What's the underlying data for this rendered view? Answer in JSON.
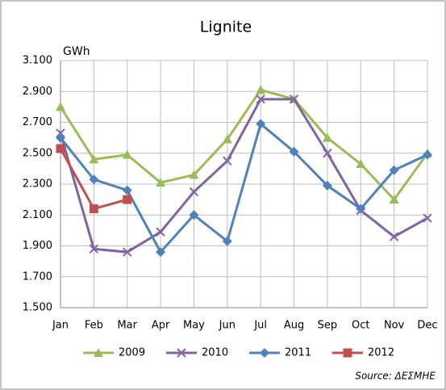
{
  "chart_data": {
    "type": "line",
    "title": "Lignite",
    "y_label": "GWh",
    "categories": [
      "Jan",
      "Feb",
      "Mar",
      "Apr",
      "May",
      "Jun",
      "Jul",
      "Aug",
      "Sep",
      "Oct",
      "Nov",
      "Dec"
    ],
    "series": [
      {
        "name": "2009",
        "color": "#9bbb59",
        "marker": "triangle",
        "values": [
          2800,
          2460,
          2490,
          2310,
          2360,
          2590,
          2910,
          2850,
          2600,
          2430,
          2200,
          2500
        ]
      },
      {
        "name": "2010",
        "color": "#8064a2",
        "marker": "x",
        "values": [
          2630,
          1880,
          1860,
          1990,
          2250,
          2450,
          2850,
          2850,
          2500,
          2130,
          1960,
          2080
        ]
      },
      {
        "name": "2011",
        "color": "#4f81bd",
        "marker": "diamond",
        "values": [
          2600,
          2330,
          2260,
          1860,
          2100,
          1930,
          2690,
          2510,
          2290,
          2140,
          2390,
          2490
        ]
      },
      {
        "name": "2012",
        "color": "#c0504d",
        "marker": "square",
        "values": [
          2530,
          2140,
          2200,
          null,
          null,
          null,
          null,
          null,
          null,
          null,
          null,
          null
        ]
      }
    ],
    "ylim": [
      1500,
      3100
    ],
    "yticks": [
      {
        "value": 1500,
        "label": "1.500"
      },
      {
        "value": 1700,
        "label": "1.700"
      },
      {
        "value": 1900,
        "label": "1.900"
      },
      {
        "value": 2100,
        "label": "2.100"
      },
      {
        "value": 2300,
        "label": "2.300"
      },
      {
        "value": 2500,
        "label": "2.500"
      },
      {
        "value": 2700,
        "label": "2.700"
      },
      {
        "value": 2900,
        "label": "2.900"
      },
      {
        "value": 3100,
        "label": "3.100"
      }
    ],
    "grid": true,
    "legend": "bottom",
    "annotation": "Source: ΔΕΣΜΗΕ"
  }
}
